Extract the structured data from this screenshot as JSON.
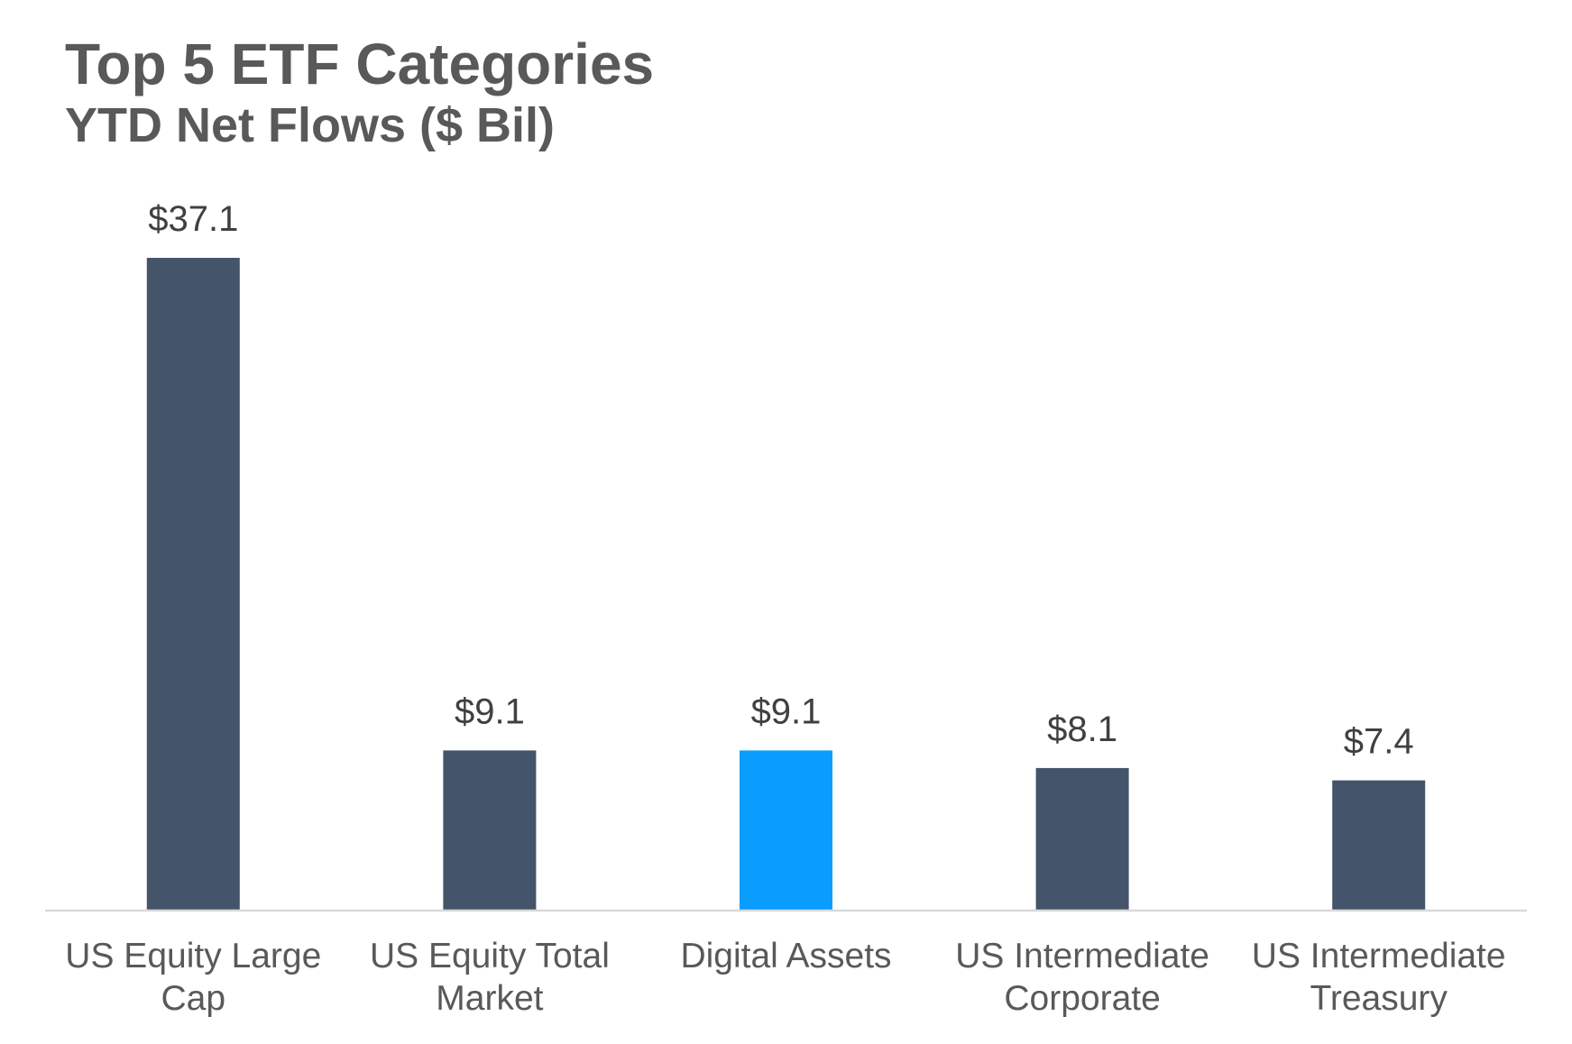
{
  "chart_data": {
    "type": "bar",
    "title": "Top 5 ETF Categories",
    "subtitle": "YTD Net Flows ($ Bil)",
    "categories": [
      [
        "US Equity Large",
        "Cap"
      ],
      [
        "US Equity Total",
        "Market"
      ],
      [
        "Digital Assets"
      ],
      [
        "US Intermediate",
        "Corporate"
      ],
      [
        "US Intermediate",
        "Treasury"
      ]
    ],
    "values": [
      37.1,
      9.1,
      9.1,
      8.1,
      7.4
    ],
    "value_labels": [
      "$37.1",
      "$9.1",
      "$9.1",
      "$8.1",
      "$7.4"
    ],
    "colors": [
      "#44546a",
      "#44546a",
      "#0a9cff",
      "#44546a",
      "#44546a"
    ],
    "baseline_color": "#d9d9d9",
    "xlabel": "",
    "ylabel": "",
    "ylim": [
      0,
      37.1
    ],
    "grid": false,
    "legend": "none"
  }
}
